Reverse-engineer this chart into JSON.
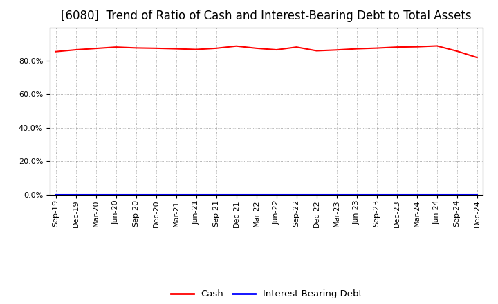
{
  "title": "[6080]  Trend of Ratio of Cash and Interest-Bearing Debt to Total Assets",
  "x_labels": [
    "Sep-19",
    "Dec-19",
    "Mar-20",
    "Jun-20",
    "Sep-20",
    "Dec-20",
    "Mar-21",
    "Jun-21",
    "Sep-21",
    "Dec-21",
    "Mar-22",
    "Jun-22",
    "Sep-22",
    "Dec-22",
    "Mar-23",
    "Jun-23",
    "Sep-23",
    "Dec-23",
    "Mar-24",
    "Jun-24",
    "Sep-24",
    "Dec-24"
  ],
  "cash": [
    0.855,
    0.866,
    0.874,
    0.882,
    0.877,
    0.875,
    0.872,
    0.868,
    0.875,
    0.888,
    0.875,
    0.866,
    0.882,
    0.86,
    0.865,
    0.872,
    0.876,
    0.882,
    0.884,
    0.889,
    0.858,
    0.82
  ],
  "interest_bearing_debt": [
    0.0,
    0.0,
    0.0,
    0.0,
    0.0,
    0.0,
    0.0,
    0.0,
    0.0,
    0.0,
    0.0,
    0.0,
    0.0,
    0.0,
    0.0,
    0.0,
    0.0,
    0.0,
    0.0,
    0.0,
    0.0,
    0.0
  ],
  "cash_color": "#ff0000",
  "interest_color": "#0000ff",
  "background_color": "#ffffff",
  "grid_color": "#999999",
  "ylim": [
    0.0,
    1.0
  ],
  "yticks": [
    0.0,
    0.2,
    0.4,
    0.6,
    0.8
  ],
  "title_fontsize": 12,
  "legend_fontsize": 9.5,
  "tick_fontsize": 8,
  "line_width": 1.5
}
